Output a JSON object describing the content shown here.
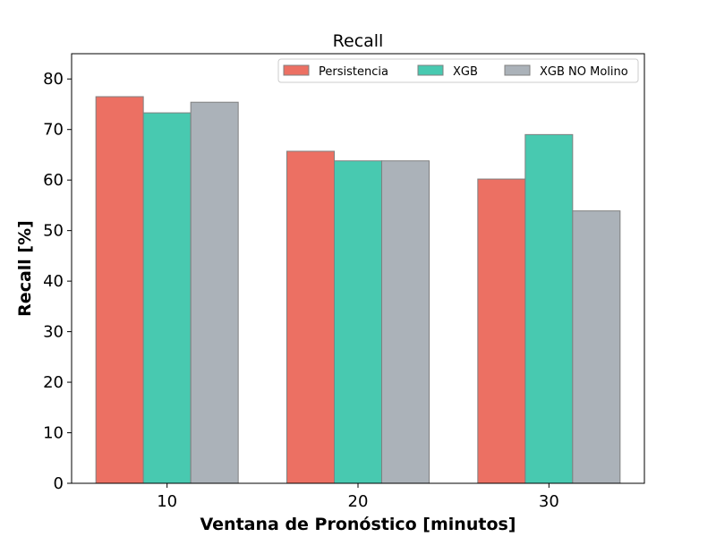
{
  "chart_data": {
    "type": "bar",
    "title": "Recall",
    "xlabel": "Ventana de Pronóstico [minutos]",
    "ylabel": "Recall [%]",
    "categories": [
      "10",
      "20",
      "30"
    ],
    "ylim": [
      0,
      85
    ],
    "yticks": [
      0,
      10,
      20,
      30,
      40,
      50,
      60,
      70,
      80
    ],
    "grid": false,
    "legend_position": "top-right",
    "series": [
      {
        "name": "Persistencia",
        "color": "#ec7063",
        "values": [
          76.5,
          65.7,
          60.2
        ]
      },
      {
        "name": "XGB",
        "color": "#48c9b0",
        "values": [
          73.3,
          63.8,
          69.0
        ]
      },
      {
        "name": "XGB NO Molino",
        "color": "#abb2b9",
        "values": [
          75.4,
          63.8,
          53.9
        ]
      }
    ],
    "bar_edge_color": "#808080"
  }
}
